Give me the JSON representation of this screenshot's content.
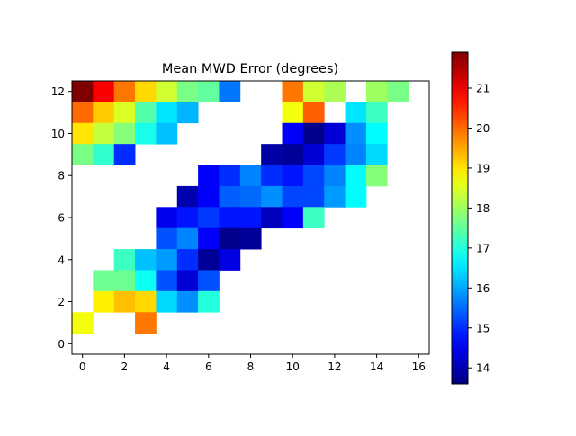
{
  "chart_data": {
    "type": "heatmap",
    "title": "Mean MWD Error (degrees)",
    "xlabel": "",
    "ylabel": "",
    "colormap": "jet",
    "xlim": [
      -0.5,
      16.5
    ],
    "ylim": [
      -0.5,
      12.5
    ],
    "x_ticks": [
      0,
      2,
      4,
      6,
      8,
      10,
      12,
      14,
      16
    ],
    "y_ticks": [
      0,
      2,
      4,
      6,
      8,
      10,
      12
    ],
    "color_range": [
      13.6,
      21.9
    ],
    "colorbar_ticks": [
      14,
      15,
      16,
      17,
      18,
      19,
      20,
      21
    ],
    "grid": false,
    "cells": [
      {
        "x": 0,
        "y": 12,
        "v": 21.9
      },
      {
        "x": 1,
        "y": 12,
        "v": 20.9
      },
      {
        "x": 2,
        "y": 12,
        "v": 19.9
      },
      {
        "x": 3,
        "y": 12,
        "v": 19.1
      },
      {
        "x": 4,
        "y": 12,
        "v": 18.4
      },
      {
        "x": 5,
        "y": 12,
        "v": 17.7
      },
      {
        "x": 6,
        "y": 12,
        "v": 17.5
      },
      {
        "x": 7,
        "y": 12,
        "v": 15.6
      },
      {
        "x": 10,
        "y": 12,
        "v": 19.9
      },
      {
        "x": 11,
        "y": 12,
        "v": 18.4
      },
      {
        "x": 12,
        "y": 12,
        "v": 18.1
      },
      {
        "x": 14,
        "y": 12,
        "v": 18.0
      },
      {
        "x": 15,
        "y": 12,
        "v": 17.7
      },
      {
        "x": 0,
        "y": 11,
        "v": 20.0
      },
      {
        "x": 1,
        "y": 11,
        "v": 19.2
      },
      {
        "x": 2,
        "y": 11,
        "v": 18.5
      },
      {
        "x": 3,
        "y": 11,
        "v": 17.4
      },
      {
        "x": 4,
        "y": 11,
        "v": 16.5
      },
      {
        "x": 5,
        "y": 11,
        "v": 16.1
      },
      {
        "x": 10,
        "y": 11,
        "v": 18.7
      },
      {
        "x": 11,
        "y": 11,
        "v": 20.1
      },
      {
        "x": 13,
        "y": 11,
        "v": 16.5
      },
      {
        "x": 14,
        "y": 11,
        "v": 17.2
      },
      {
        "x": 0,
        "y": 10,
        "v": 19.0
      },
      {
        "x": 1,
        "y": 10,
        "v": 18.3
      },
      {
        "x": 2,
        "y": 10,
        "v": 17.8
      },
      {
        "x": 3,
        "y": 10,
        "v": 16.9
      },
      {
        "x": 4,
        "y": 10,
        "v": 16.2
      },
      {
        "x": 10,
        "y": 10,
        "v": 14.6
      },
      {
        "x": 11,
        "y": 10,
        "v": 13.7
      },
      {
        "x": 12,
        "y": 10,
        "v": 14.3
      },
      {
        "x": 13,
        "y": 10,
        "v": 15.8
      },
      {
        "x": 14,
        "y": 10,
        "v": 16.7
      },
      {
        "x": 0,
        "y": 9,
        "v": 17.7
      },
      {
        "x": 1,
        "y": 9,
        "v": 17.1
      },
      {
        "x": 2,
        "y": 9,
        "v": 15.0
      },
      {
        "x": 9,
        "y": 9,
        "v": 13.9
      },
      {
        "x": 10,
        "y": 9,
        "v": 13.8
      },
      {
        "x": 11,
        "y": 9,
        "v": 14.3
      },
      {
        "x": 12,
        "y": 9,
        "v": 15.1
      },
      {
        "x": 13,
        "y": 9,
        "v": 15.7
      },
      {
        "x": 14,
        "y": 9,
        "v": 16.4
      },
      {
        "x": 6,
        "y": 8,
        "v": 14.6
      },
      {
        "x": 7,
        "y": 8,
        "v": 15.0
      },
      {
        "x": 8,
        "y": 8,
        "v": 15.7
      },
      {
        "x": 9,
        "y": 8,
        "v": 15.0
      },
      {
        "x": 10,
        "y": 8,
        "v": 14.8
      },
      {
        "x": 11,
        "y": 8,
        "v": 15.2
      },
      {
        "x": 12,
        "y": 8,
        "v": 15.7
      },
      {
        "x": 13,
        "y": 8,
        "v": 16.7
      },
      {
        "x": 14,
        "y": 8,
        "v": 17.8
      },
      {
        "x": 5,
        "y": 7,
        "v": 14.0
      },
      {
        "x": 6,
        "y": 7,
        "v": 14.6
      },
      {
        "x": 7,
        "y": 7,
        "v": 15.4
      },
      {
        "x": 8,
        "y": 7,
        "v": 15.5
      },
      {
        "x": 9,
        "y": 7,
        "v": 15.8
      },
      {
        "x": 10,
        "y": 7,
        "v": 15.2
      },
      {
        "x": 11,
        "y": 7,
        "v": 15.2
      },
      {
        "x": 12,
        "y": 7,
        "v": 15.9
      },
      {
        "x": 13,
        "y": 7,
        "v": 16.7
      },
      {
        "x": 4,
        "y": 6,
        "v": 14.5
      },
      {
        "x": 5,
        "y": 6,
        "v": 14.8
      },
      {
        "x": 6,
        "y": 6,
        "v": 15.1
      },
      {
        "x": 7,
        "y": 6,
        "v": 14.8
      },
      {
        "x": 8,
        "y": 6,
        "v": 14.8
      },
      {
        "x": 9,
        "y": 6,
        "v": 14.1
      },
      {
        "x": 10,
        "y": 6,
        "v": 14.6
      },
      {
        "x": 11,
        "y": 6,
        "v": 17.2
      },
      {
        "x": 4,
        "y": 5,
        "v": 15.3
      },
      {
        "x": 5,
        "y": 5,
        "v": 15.7
      },
      {
        "x": 6,
        "y": 5,
        "v": 14.6
      },
      {
        "x": 7,
        "y": 5,
        "v": 13.7
      },
      {
        "x": 8,
        "y": 5,
        "v": 13.8
      },
      {
        "x": 2,
        "y": 4,
        "v": 17.2
      },
      {
        "x": 3,
        "y": 4,
        "v": 16.2
      },
      {
        "x": 4,
        "y": 4,
        "v": 15.9
      },
      {
        "x": 5,
        "y": 4,
        "v": 15.0
      },
      {
        "x": 6,
        "y": 4,
        "v": 13.8
      },
      {
        "x": 7,
        "y": 4,
        "v": 14.4
      },
      {
        "x": 1,
        "y": 3,
        "v": 17.6
      },
      {
        "x": 2,
        "y": 3,
        "v": 17.6
      },
      {
        "x": 3,
        "y": 3,
        "v": 16.8
      },
      {
        "x": 4,
        "y": 3,
        "v": 15.3
      },
      {
        "x": 5,
        "y": 3,
        "v": 14.3
      },
      {
        "x": 6,
        "y": 3,
        "v": 15.3
      },
      {
        "x": 1,
        "y": 2,
        "v": 18.9
      },
      {
        "x": 2,
        "y": 2,
        "v": 19.3
      },
      {
        "x": 3,
        "y": 2,
        "v": 19.1
      },
      {
        "x": 4,
        "y": 2,
        "v": 16.4
      },
      {
        "x": 5,
        "y": 2,
        "v": 15.8
      },
      {
        "x": 6,
        "y": 2,
        "v": 17.0
      },
      {
        "x": 0,
        "y": 1,
        "v": 18.7
      },
      {
        "x": 3,
        "y": 1,
        "v": 19.9
      }
    ]
  }
}
